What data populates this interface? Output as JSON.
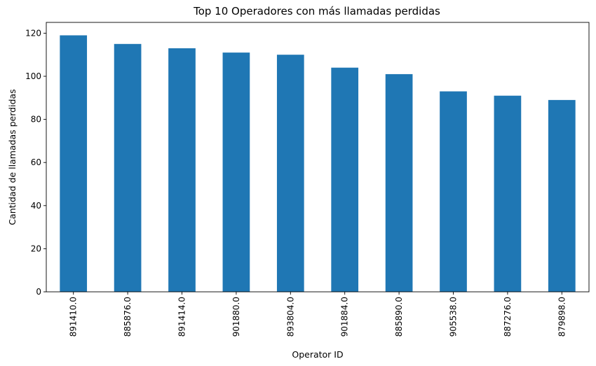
{
  "chart_data": {
    "type": "bar",
    "title": "Top 10 Operadores con más llamadas perdidas",
    "xlabel": "Operator ID",
    "ylabel": "Cantidad de llamadas perdidas",
    "categories": [
      "891410.0",
      "885876.0",
      "891414.0",
      "901880.0",
      "893804.0",
      "901884.0",
      "885890.0",
      "905538.0",
      "887276.0",
      "879898.0"
    ],
    "values": [
      119,
      115,
      113,
      111,
      110,
      104,
      101,
      93,
      91,
      89
    ],
    "ylim": [
      0,
      125
    ],
    "yticks": [
      0,
      20,
      40,
      60,
      80,
      100,
      120
    ],
    "grid": false,
    "legend": "none",
    "bar_color": "#1f77b4"
  }
}
